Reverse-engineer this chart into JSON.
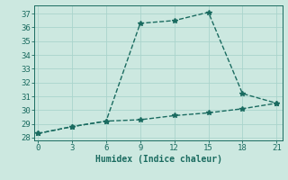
{
  "xlabel": "Humidex (Indice chaleur)",
  "ylabel": "",
  "background_color": "#cce8e0",
  "line_color": "#1a6b60",
  "grid_color": "#aad4cc",
  "x_line1": [
    0,
    3,
    6,
    9,
    12,
    15,
    18,
    21
  ],
  "y_line1": [
    28.3,
    28.8,
    29.2,
    36.3,
    36.5,
    37.1,
    31.2,
    30.5
  ],
  "x_line2": [
    0,
    3,
    6,
    9,
    12,
    15,
    18,
    21
  ],
  "y_line2": [
    28.3,
    28.8,
    29.2,
    29.3,
    29.6,
    29.8,
    30.1,
    30.5
  ],
  "xlim": [
    -0.3,
    21.5
  ],
  "ylim": [
    27.8,
    37.6
  ],
  "xticks": [
    0,
    3,
    6,
    9,
    12,
    15,
    18,
    21
  ],
  "yticks": [
    28,
    29,
    30,
    31,
    32,
    33,
    34,
    35,
    36,
    37
  ],
  "marker": "*",
  "marker_size": 4,
  "linewidth": 1.0,
  "axis_fontsize": 7,
  "tick_fontsize": 6.5
}
